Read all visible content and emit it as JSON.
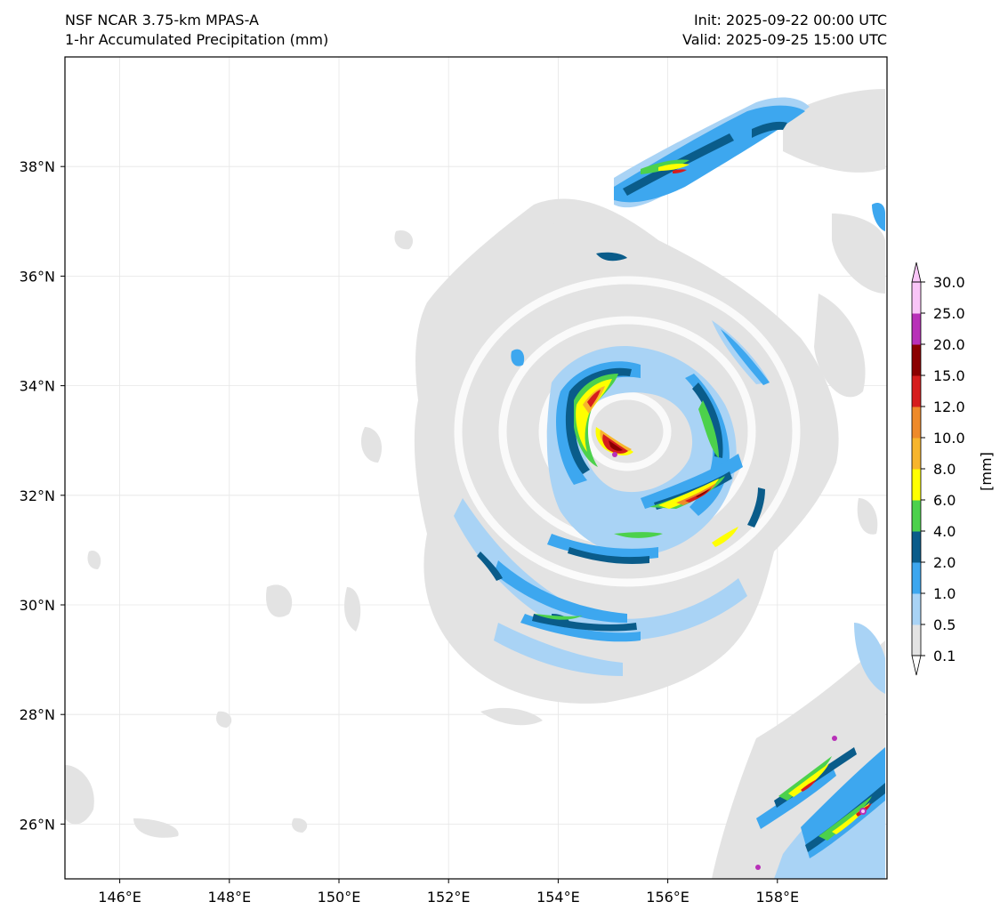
{
  "header": {
    "title_left_1": "NSF NCAR 3.75-km MPAS-A",
    "title_left_2": "1-hr Accumulated Precipitation (mm)",
    "title_right_1": "Init: 2025-09-22 00:00 UTC",
    "title_right_2": "Valid: 2025-09-25 15:00 UTC"
  },
  "map": {
    "lon_range": [
      145,
      160
    ],
    "lat_range": [
      25,
      40
    ],
    "lon_ticks": [
      "146°E",
      "148°E",
      "150°E",
      "152°E",
      "154°E",
      "156°E",
      "158°E"
    ],
    "lon_tick_values": [
      146,
      148,
      150,
      152,
      154,
      156,
      158
    ],
    "lat_ticks": [
      "26°N",
      "28°N",
      "30°N",
      "32°N",
      "34°N",
      "36°N",
      "38°N"
    ],
    "lat_tick_values": [
      26,
      28,
      30,
      32,
      34,
      36,
      38
    ],
    "storm_center": {
      "lon": 155.3,
      "lat": 33.0
    }
  },
  "colorbar": {
    "unit_label": "[mm]",
    "levels": [
      "0.1",
      "0.5",
      "1.0",
      "2.0",
      "4.0",
      "6.0",
      "8.0",
      "10.0",
      "12.0",
      "15.0",
      "20.0",
      "25.0",
      "30.0"
    ],
    "colors": [
      "#e3e3e3",
      "#a9d3f5",
      "#3da7ef",
      "#0a5c8a",
      "#4cd14c",
      "#ffff00",
      "#f7b52c",
      "#ee8a2a",
      "#d61d1d",
      "#8b0000",
      "#b830b8",
      "#f9c5f7"
    ],
    "under_color": "#ffffff",
    "over_color": "#f9c5f7"
  }
}
